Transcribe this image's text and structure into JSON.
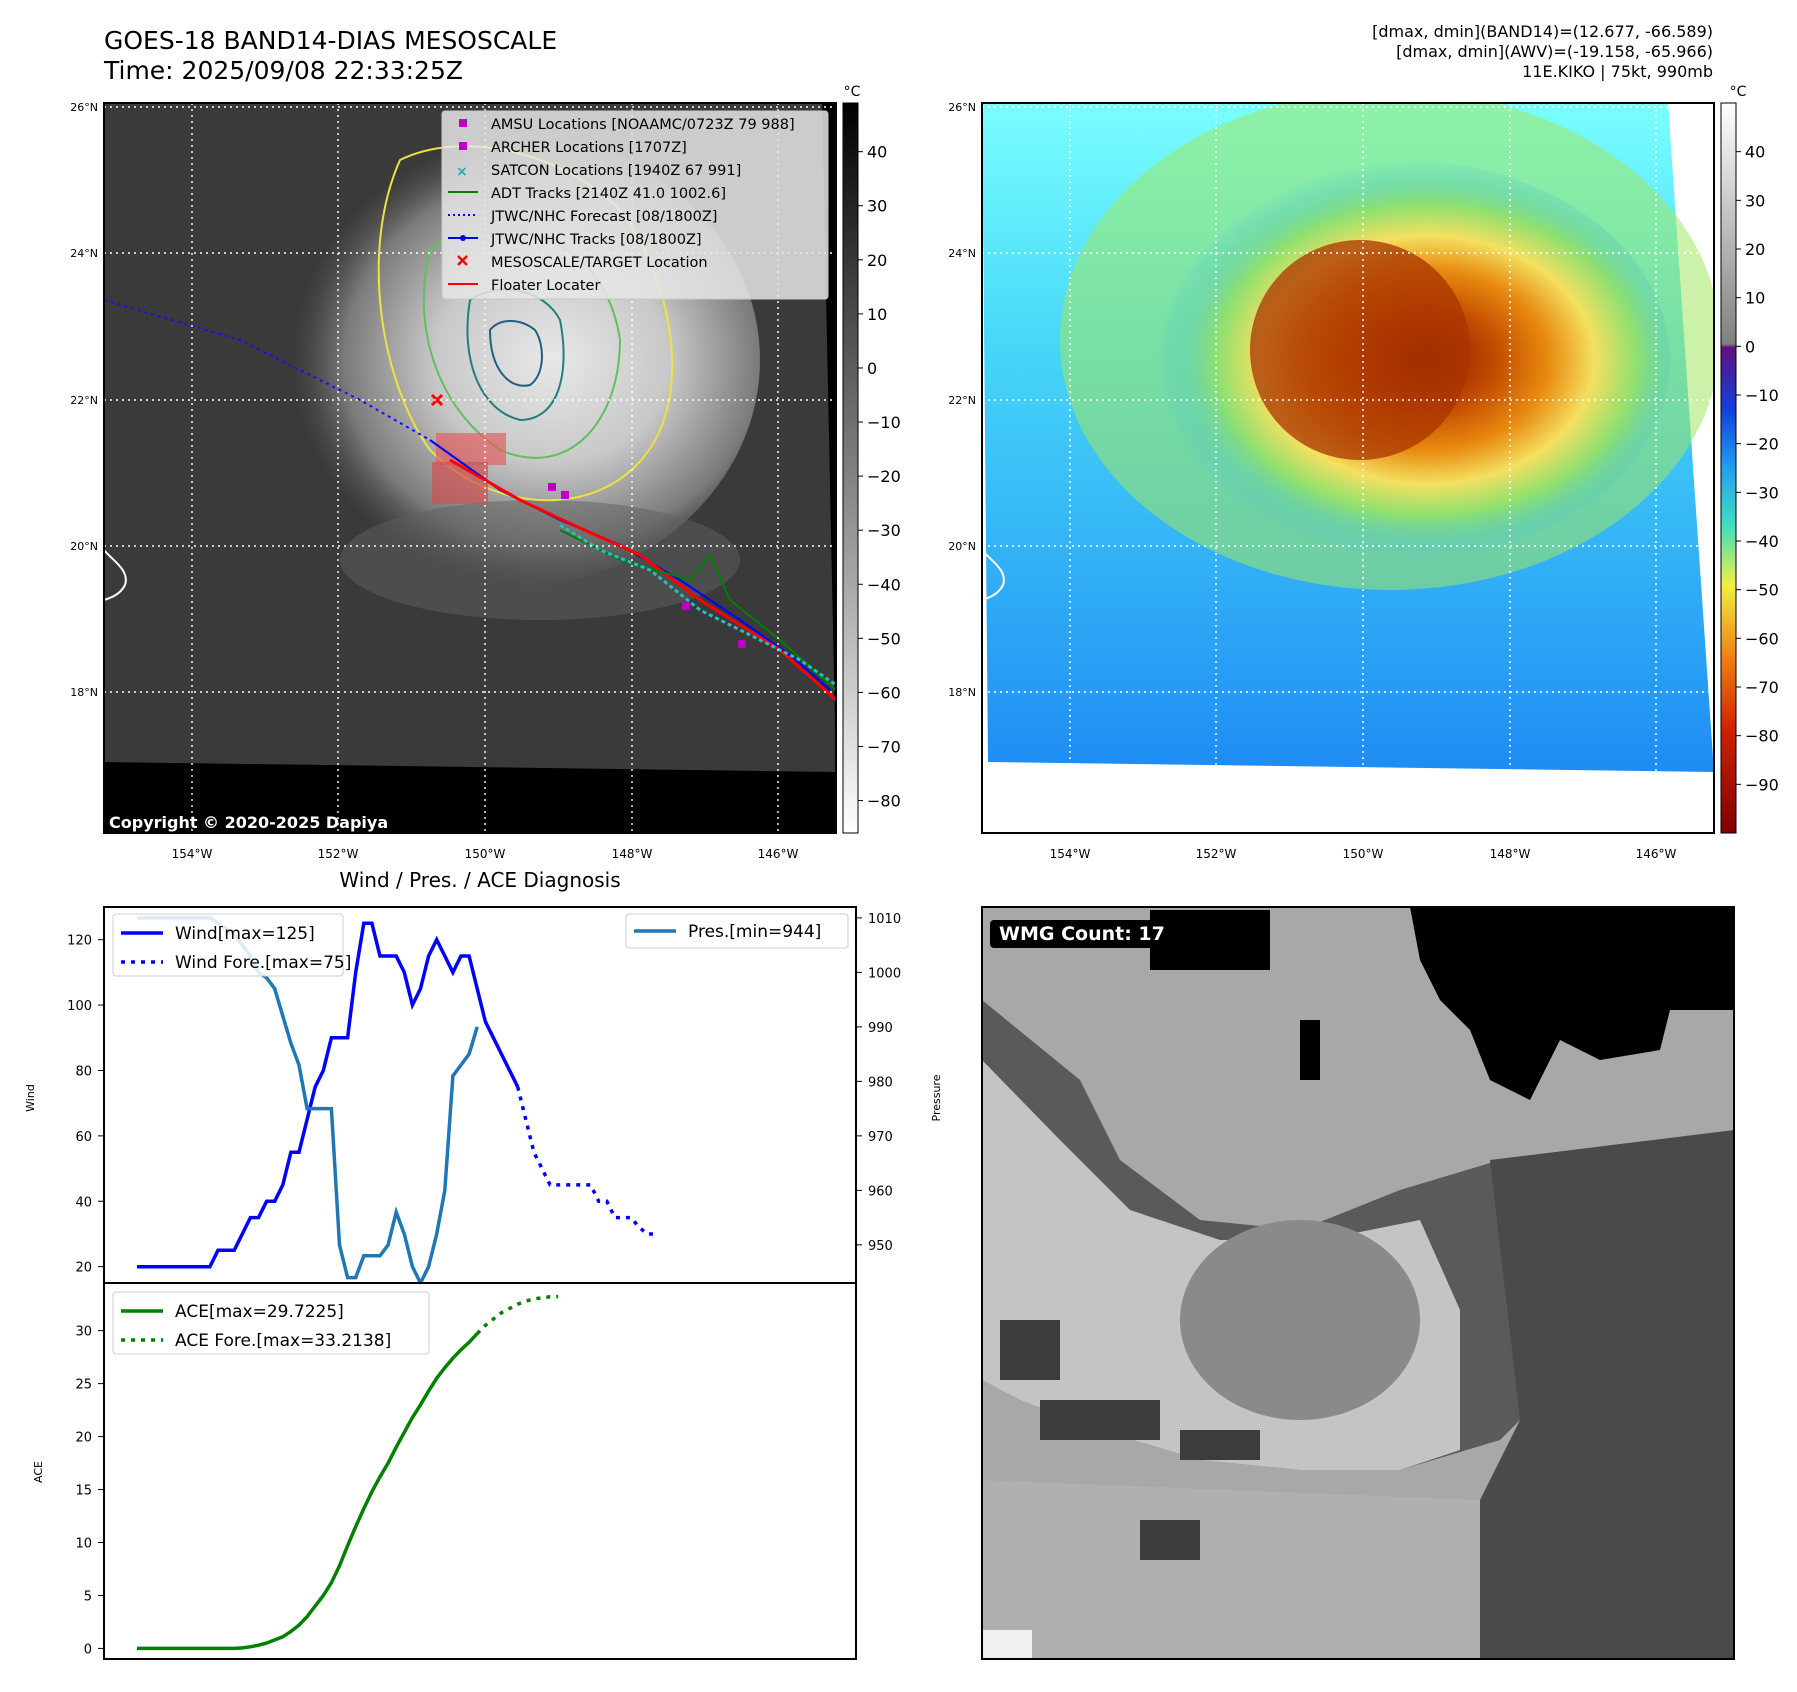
{
  "header": {
    "title_line1": "GOES-18 BAND14-DIAS MESOSCALE",
    "title_line2": "Time: 2025/09/08 22:33:25Z",
    "stats_line1": "[dmax, dmin](BAND14)=(12.677, -66.589)",
    "stats_line2": "[dmax, dmin](AWV)=(-19.158, -65.966)",
    "stats_line3": "11E.KIKO | 75kt, 990mb"
  },
  "maps": {
    "lat_labels": [
      "26°N",
      "24°N",
      "22°N",
      "20°N",
      "18°N"
    ],
    "lon_labels": [
      "154°W",
      "152°W",
      "150°W",
      "148°W",
      "146°W"
    ],
    "copyright": "Copyright © 2020-2025 Dapiya",
    "ir_colorbar": {
      "unit": "°C",
      "ticks": [
        "40",
        "30",
        "20",
        "10",
        "0",
        "−10",
        "−20",
        "−30",
        "−40",
        "−50",
        "−60",
        "−70",
        "−80"
      ]
    },
    "awv_colorbar": {
      "unit": "°C",
      "ticks": [
        "40",
        "30",
        "20",
        "10",
        "0",
        "−10",
        "−20",
        "−30",
        "−40",
        "−50",
        "−60",
        "−70",
        "−80",
        "−90"
      ]
    },
    "legend": [
      {
        "label": "AMSU Locations [NOAAMC/0723Z 79 988]",
        "color": "#c000c0",
        "icon": "square-marker-icon"
      },
      {
        "label": "ARCHER Locations [1707Z]",
        "color": "#c000c0",
        "icon": "square-marker-icon"
      },
      {
        "label": "SATCON Locations [1940Z 67 991]",
        "color": "#20b0b0",
        "icon": "cross-marker-icon"
      },
      {
        "label": "ADT Tracks [2140Z 41.0 1002.6]",
        "color": "#008000",
        "icon": "solid-line-icon"
      },
      {
        "label": "JTWC/NHC Forecast [08/1800Z]",
        "color": "#0000ff",
        "icon": "dotted-line-icon"
      },
      {
        "label": "JTWC/NHC Tracks [08/1800Z]",
        "color": "#0000ff",
        "icon": "line-dot-icon"
      },
      {
        "label": "MESOSCALE/TARGET Location",
        "color": "#ff0000",
        "icon": "x-marker-icon"
      },
      {
        "label": "Floater Locater",
        "color": "#ff0000",
        "icon": "solid-line-icon"
      }
    ]
  },
  "wmg": {
    "label": "WMG Count: 17"
  },
  "chart_data": [
    {
      "type": "line",
      "title": "Wind / Pres. / ACE Diagnosis",
      "ylabel": "Wind",
      "y2label": "Pressure",
      "ylim": [
        15,
        130
      ],
      "y2lim": [
        943,
        1012
      ],
      "yticks": [
        20,
        40,
        60,
        80,
        100,
        120
      ],
      "y2ticks": [
        950,
        960,
        970,
        980,
        990,
        1000,
        1010
      ],
      "series": [
        {
          "name": "Wind[max=125]",
          "color": "#0000ff",
          "style": "solid",
          "values": [
            20,
            20,
            20,
            20,
            20,
            20,
            20,
            20,
            20,
            20,
            25,
            25,
            25,
            30,
            35,
            35,
            40,
            40,
            45,
            55,
            55,
            65,
            75,
            80,
            90,
            90,
            90,
            110,
            125,
            125,
            115,
            115,
            115,
            110,
            100,
            105,
            115,
            120,
            115,
            110,
            115,
            115,
            105,
            95,
            90,
            85,
            80,
            75
          ]
        },
        {
          "name": "Wind Fore.[max=75]",
          "color": "#0000ff",
          "style": "dotted",
          "start": 47,
          "values": [
            75,
            65,
            55,
            50,
            45,
            45,
            45,
            45,
            45,
            45,
            40,
            40,
            35,
            35,
            35,
            32,
            30,
            30
          ]
        },
        {
          "name": "Pres.[min=944]",
          "color": "#1f77b4",
          "style": "solid",
          "values": [
            1010,
            1010,
            1010,
            1010,
            1010,
            1010,
            1010,
            1010,
            1010,
            1010,
            1009,
            1008,
            1007,
            1005,
            1003,
            1000,
            999,
            997,
            992,
            987,
            983,
            975,
            975,
            975,
            975,
            950,
            944,
            944,
            948,
            948,
            948,
            950,
            956,
            952,
            946,
            943,
            946,
            952,
            960,
            981,
            983,
            985,
            990
          ]
        }
      ]
    },
    {
      "type": "line",
      "ylabel": "ACE",
      "ylim": [
        -1,
        34.5
      ],
      "yticks": [
        0,
        5,
        10,
        15,
        20,
        25,
        30
      ],
      "series": [
        {
          "name": "ACE[max=29.7225]",
          "color": "#008000",
          "style": "solid",
          "values": [
            0,
            0,
            0,
            0,
            0,
            0,
            0,
            0,
            0,
            0,
            0,
            0,
            0,
            0.05,
            0.15,
            0.3,
            0.5,
            0.8,
            1.1,
            1.6,
            2.2,
            3.0,
            4.0,
            5.0,
            6.2,
            7.8,
            9.7,
            11.5,
            13.2,
            14.8,
            16.2,
            17.5,
            19.0,
            20.4,
            21.8,
            23.0,
            24.3,
            25.5,
            26.5,
            27.4,
            28.2,
            28.9,
            29.7225
          ]
        },
        {
          "name": "ACE Fore.[max=33.2138]",
          "color": "#008000",
          "style": "dotted",
          "start": 42,
          "values": [
            29.7225,
            30.5,
            31.1,
            31.7,
            32.1,
            32.5,
            32.8,
            33.0,
            33.1,
            33.2,
            33.2138
          ]
        }
      ]
    }
  ]
}
